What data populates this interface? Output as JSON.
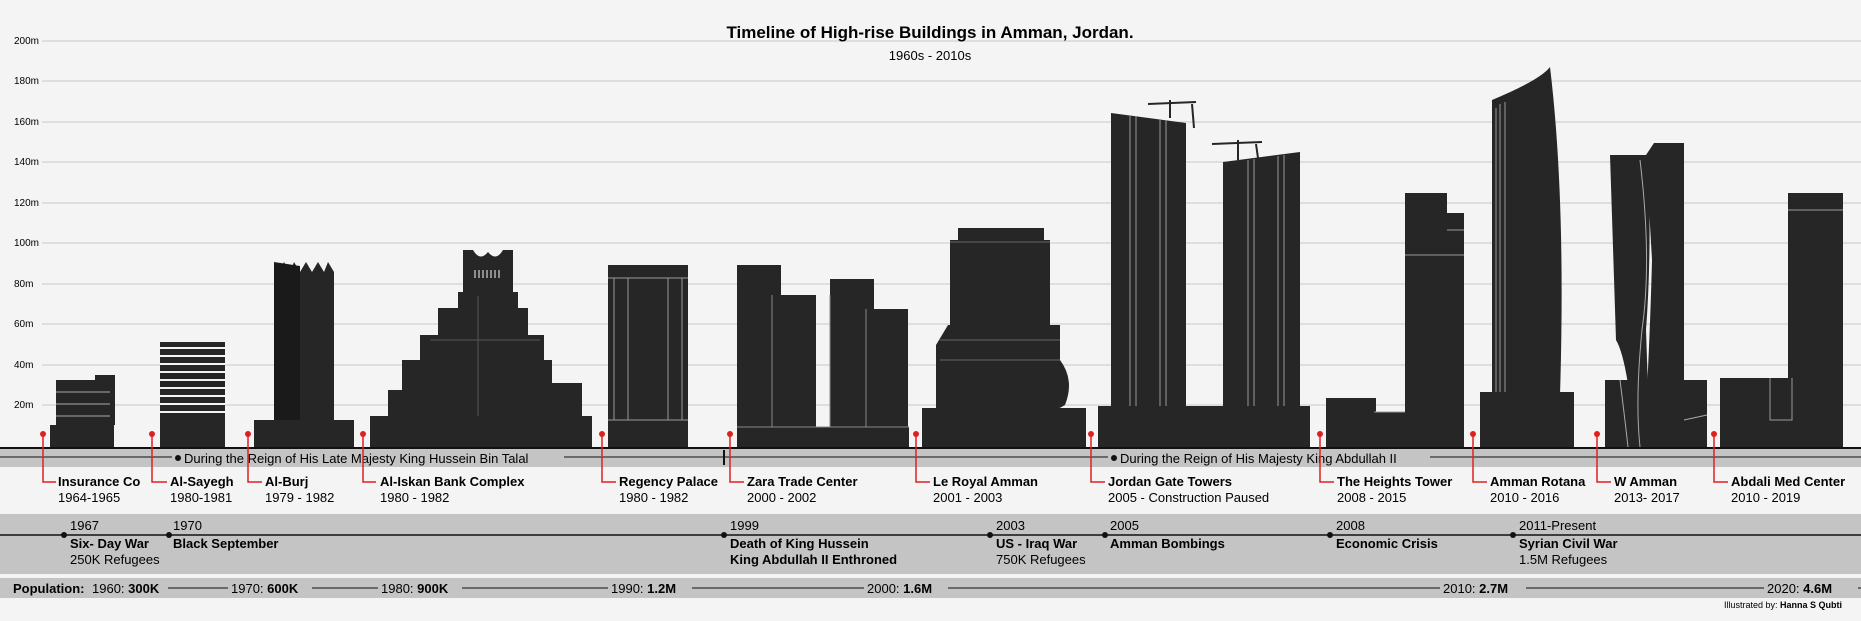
{
  "title": "Timeline of High-rise Buildings in Amman, Jordan.",
  "subtitle": "1960s - 2010s",
  "y_ticks": [
    "200m",
    "180m",
    "160m",
    "140m",
    "120m",
    "100m",
    "80m",
    "60m",
    "40m",
    "20m"
  ],
  "reigns": [
    {
      "label": "During the Reign of His Late Majesty King Hussein Bin Talal"
    },
    {
      "label": "During the Reign of His Majesty King Abdullah II"
    }
  ],
  "buildings": [
    {
      "name": "Insurance Co",
      "years": "1964-1965"
    },
    {
      "name": "Al-Sayegh",
      "years": "1980-1981"
    },
    {
      "name": "Al-Burj",
      "years": "1979 - 1982"
    },
    {
      "name": "Al-Iskan Bank Complex",
      "years": "1980 - 1982"
    },
    {
      "name": "Regency Palace",
      "years": "1980 - 1982"
    },
    {
      "name": "Zara Trade Center",
      "years": "2000 - 2002"
    },
    {
      "name": "Le Royal Amman",
      "years": "2001 - 2003"
    },
    {
      "name": "Jordan Gate Towers",
      "years": "2005 - Construction Paused"
    },
    {
      "name": "The Heights Tower",
      "years": "2008 - 2015"
    },
    {
      "name": "Amman Rotana",
      "years": "2010 - 2016"
    },
    {
      "name": "W Amman",
      "years": "2013- 2017"
    },
    {
      "name": "Abdali Med Center",
      "years": "2010 - 2019"
    }
  ],
  "events": [
    {
      "year": "1967",
      "title": "Six- Day War",
      "detail": "250K Refugees"
    },
    {
      "year": "1970",
      "title": "Black September",
      "detail": ""
    },
    {
      "year": "1999",
      "title": "Death of King Hussein",
      "detail": "King Abdullah II Enthroned"
    },
    {
      "year": "2003",
      "title": "US - Iraq War",
      "detail": "750K Refugees"
    },
    {
      "year": "2005",
      "title": "Amman Bombings",
      "detail": ""
    },
    {
      "year": "2008",
      "title": "Economic Crisis",
      "detail": ""
    },
    {
      "year": "2011-Present",
      "title": "Syrian Civil War",
      "detail": "1.5M Refugees"
    }
  ],
  "population": {
    "label": "Population:",
    "points": [
      {
        "year": "1960:",
        "value": "300K"
      },
      {
        "year": "1970:",
        "value": "600K"
      },
      {
        "year": "1980:",
        "value": "900K"
      },
      {
        "year": "1990:",
        "value": "1.2M"
      },
      {
        "year": "2000:",
        "value": "1.6M"
      },
      {
        "year": "2010:",
        "value": "2.7M"
      },
      {
        "year": "2020:",
        "value": "4.6M"
      }
    ]
  },
  "credit": {
    "prefix": "Illustrated by:",
    "name": "Hanna S Qubti"
  },
  "colors": {
    "building": "#262626",
    "marker": "#e02020",
    "band": "#c4c4c4",
    "grid": "#c9c9c9"
  }
}
